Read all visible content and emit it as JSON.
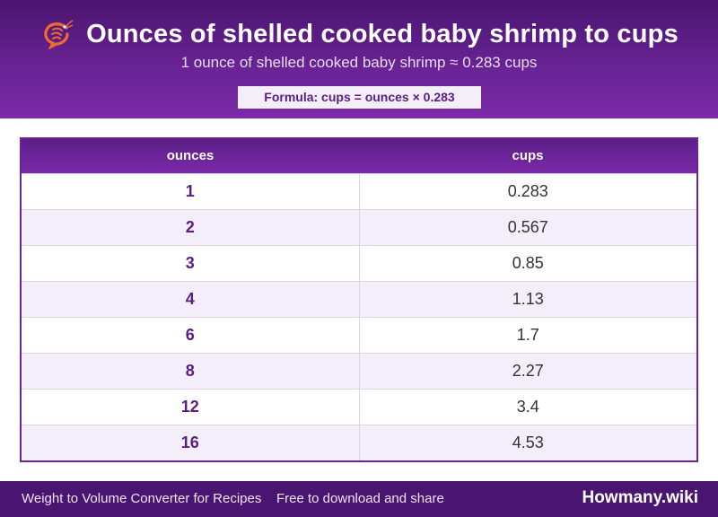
{
  "header": {
    "icon": "shrimp-icon",
    "title": "Ounces of shelled cooked baby shrimp to cups",
    "subtitle": "1 ounce of shelled cooked baby shrimp ≈ 0.283 cups",
    "formula": "Formula: cups = ounces × 0.283"
  },
  "table": {
    "headers": [
      "ounces",
      "cups"
    ],
    "rows": [
      [
        "1",
        "0.283"
      ],
      [
        "2",
        "0.567"
      ],
      [
        "3",
        "0.85"
      ],
      [
        "4",
        "1.13"
      ],
      [
        "6",
        "1.7"
      ],
      [
        "8",
        "2.27"
      ],
      [
        "12",
        "3.4"
      ],
      [
        "16",
        "4.53"
      ]
    ]
  },
  "footer": {
    "left_text": "Weight to Volume Converter for Recipes",
    "right_text": "Free to download and share",
    "brand": "Howmany.wiki"
  },
  "colors": {
    "primary": "#6a2496",
    "dark": "#4a1570",
    "accent_icon": "#f26a2e"
  }
}
